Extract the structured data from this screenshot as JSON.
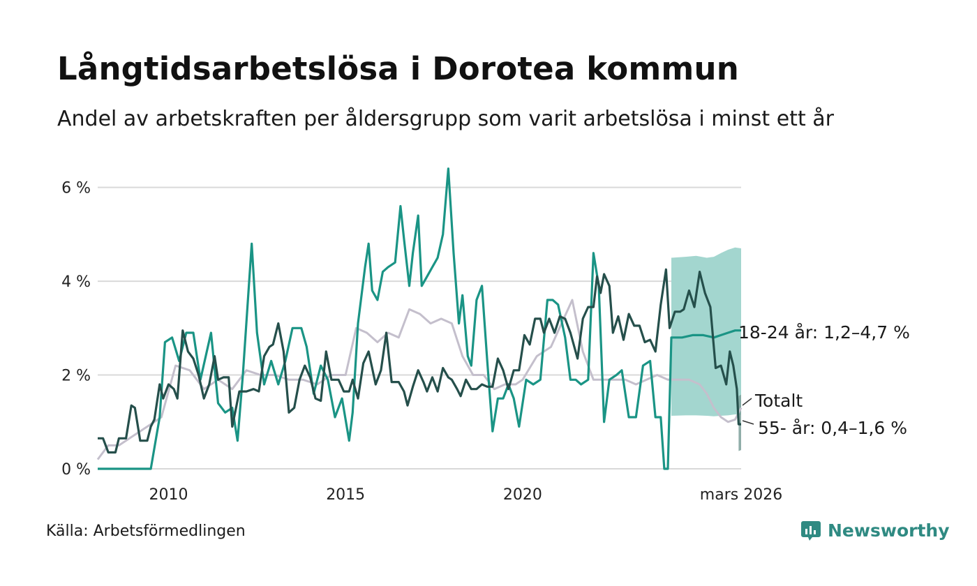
{
  "title": "Långtidsarbetslösa i Dorotea kommun",
  "subtitle": "Andel av arbetskraften per åldersgrupp som varit arbetslösa i minst ett år",
  "source": "Källa: Arbetsförmedlingen",
  "brand": {
    "name": "Newsworthy",
    "icon": "newsworthy-logo-icon",
    "color": "#2f8a82"
  },
  "chart_data": {
    "type": "line",
    "x_unit": "decimal year",
    "xlim": [
      2008.0,
      2026.17
    ],
    "ylim": [
      0,
      6.5
    ],
    "y_ticks": [
      0,
      2,
      4,
      6
    ],
    "y_tick_labels": [
      "0 %",
      "2 %",
      "4 %",
      "6 %"
    ],
    "x_ticks": [
      2010,
      2015,
      2020,
      2026.17
    ],
    "x_tick_labels": [
      "2010",
      "2015",
      "2020",
      "mars 2026"
    ],
    "grid": true,
    "series": [
      {
        "name": "Totalt",
        "label": "Totalt",
        "color": "#c4bfcc",
        "points": [
          [
            2008.0,
            0.2
          ],
          [
            2008.3,
            0.5
          ],
          [
            2008.6,
            0.5
          ],
          [
            2009.0,
            0.7
          ],
          [
            2009.4,
            0.9
          ],
          [
            2009.8,
            1.1
          ],
          [
            2010.2,
            2.2
          ],
          [
            2010.6,
            2.1
          ],
          [
            2011.0,
            1.7
          ],
          [
            2011.4,
            1.9
          ],
          [
            2011.8,
            1.7
          ],
          [
            2012.2,
            2.1
          ],
          [
            2012.6,
            2.0
          ],
          [
            2013.0,
            2.0
          ],
          [
            2013.4,
            1.9
          ],
          [
            2013.8,
            1.9
          ],
          [
            2014.2,
            1.8
          ],
          [
            2014.6,
            2.0
          ],
          [
            2015.0,
            2.0
          ],
          [
            2015.3,
            3.0
          ],
          [
            2015.6,
            2.9
          ],
          [
            2015.9,
            2.7
          ],
          [
            2016.2,
            2.9
          ],
          [
            2016.5,
            2.8
          ],
          [
            2016.8,
            3.4
          ],
          [
            2017.1,
            3.3
          ],
          [
            2017.4,
            3.1
          ],
          [
            2017.7,
            3.2
          ],
          [
            2018.0,
            3.1
          ],
          [
            2018.3,
            2.4
          ],
          [
            2018.6,
            2.0
          ],
          [
            2018.9,
            2.0
          ],
          [
            2019.2,
            1.7
          ],
          [
            2019.5,
            1.8
          ],
          [
            2019.8,
            1.8
          ],
          [
            2020.0,
            1.9
          ],
          [
            2020.4,
            2.4
          ],
          [
            2020.8,
            2.6
          ],
          [
            2021.1,
            3.1
          ],
          [
            2021.4,
            3.6
          ],
          [
            2021.7,
            2.5
          ],
          [
            2022.0,
            1.9
          ],
          [
            2022.3,
            1.9
          ],
          [
            2022.6,
            1.9
          ],
          [
            2022.9,
            1.9
          ],
          [
            2023.2,
            1.8
          ],
          [
            2023.5,
            1.9
          ],
          [
            2023.8,
            2.0
          ],
          [
            2024.1,
            1.9
          ],
          [
            2024.4,
            1.9
          ],
          [
            2024.7,
            1.9
          ],
          [
            2025.0,
            1.8
          ],
          [
            2025.2,
            1.6
          ],
          [
            2025.4,
            1.3
          ],
          [
            2025.6,
            1.1
          ],
          [
            2025.8,
            1.0
          ],
          [
            2026.0,
            1.05
          ],
          [
            2026.17,
            1.3
          ]
        ]
      },
      {
        "name": "18-24 år",
        "label": "18-24 år: 1,2–4,7 %",
        "range_low": 1.2,
        "range_high": 4.7,
        "color": "#1a9485",
        "band_color": "#a3d6cf",
        "points": [
          [
            2008.0,
            0.0
          ],
          [
            2009.5,
            0.0
          ],
          [
            2009.75,
            1.1
          ],
          [
            2009.9,
            2.7
          ],
          [
            2010.1,
            2.8
          ],
          [
            2010.3,
            2.3
          ],
          [
            2010.5,
            2.9
          ],
          [
            2010.7,
            2.9
          ],
          [
            2010.9,
            1.9
          ],
          [
            2011.2,
            2.9
          ],
          [
            2011.4,
            1.4
          ],
          [
            2011.6,
            1.2
          ],
          [
            2011.8,
            1.3
          ],
          [
            2011.95,
            0.6
          ],
          [
            2012.1,
            2.0
          ],
          [
            2012.35,
            4.8
          ],
          [
            2012.5,
            2.9
          ],
          [
            2012.7,
            1.8
          ],
          [
            2012.9,
            2.3
          ],
          [
            2013.1,
            1.8
          ],
          [
            2013.3,
            2.3
          ],
          [
            2013.5,
            3.0
          ],
          [
            2013.75,
            3.0
          ],
          [
            2013.9,
            2.6
          ],
          [
            2014.1,
            1.6
          ],
          [
            2014.3,
            2.2
          ],
          [
            2014.5,
            1.9
          ],
          [
            2014.7,
            1.1
          ],
          [
            2014.9,
            1.5
          ],
          [
            2015.1,
            0.6
          ],
          [
            2015.2,
            1.2
          ],
          [
            2015.35,
            3.1
          ],
          [
            2015.55,
            4.3
          ],
          [
            2015.65,
            4.8
          ],
          [
            2015.75,
            3.8
          ],
          [
            2015.9,
            3.6
          ],
          [
            2016.05,
            4.2
          ],
          [
            2016.2,
            4.3
          ],
          [
            2016.4,
            4.4
          ],
          [
            2016.55,
            5.6
          ],
          [
            2016.65,
            4.9
          ],
          [
            2016.8,
            3.9
          ],
          [
            2016.9,
            4.6
          ],
          [
            2017.05,
            5.4
          ],
          [
            2017.15,
            3.9
          ],
          [
            2017.3,
            4.1
          ],
          [
            2017.45,
            4.3
          ],
          [
            2017.6,
            4.5
          ],
          [
            2017.75,
            5.0
          ],
          [
            2017.9,
            6.4
          ],
          [
            2018.05,
            4.6
          ],
          [
            2018.2,
            3.1
          ],
          [
            2018.3,
            3.7
          ],
          [
            2018.45,
            2.4
          ],
          [
            2018.55,
            2.2
          ],
          [
            2018.7,
            3.6
          ],
          [
            2018.85,
            3.9
          ],
          [
            2019.0,
            2.3
          ],
          [
            2019.15,
            0.8
          ],
          [
            2019.3,
            1.5
          ],
          [
            2019.45,
            1.5
          ],
          [
            2019.6,
            1.8
          ],
          [
            2019.75,
            1.5
          ],
          [
            2019.9,
            0.9
          ],
          [
            2020.1,
            1.9
          ],
          [
            2020.3,
            1.8
          ],
          [
            2020.5,
            1.9
          ],
          [
            2020.7,
            3.6
          ],
          [
            2020.85,
            3.6
          ],
          [
            2021.0,
            3.5
          ],
          [
            2021.2,
            2.8
          ],
          [
            2021.35,
            1.9
          ],
          [
            2021.5,
            1.9
          ],
          [
            2021.65,
            1.8
          ],
          [
            2021.85,
            1.9
          ],
          [
            2022.0,
            4.6
          ],
          [
            2022.15,
            3.9
          ],
          [
            2022.3,
            1.0
          ],
          [
            2022.45,
            1.9
          ],
          [
            2022.65,
            2.0
          ],
          [
            2022.8,
            2.1
          ],
          [
            2023.0,
            1.1
          ],
          [
            2023.2,
            1.1
          ],
          [
            2023.4,
            2.2
          ],
          [
            2023.6,
            2.3
          ],
          [
            2023.75,
            1.1
          ],
          [
            2023.9,
            1.1
          ],
          [
            2024.0,
            0.0
          ],
          [
            2024.1,
            0.0
          ],
          [
            2024.2,
            2.8
          ],
          [
            2024.5,
            2.8
          ],
          [
            2024.8,
            2.85
          ],
          [
            2025.1,
            2.85
          ],
          [
            2025.4,
            2.8
          ],
          [
            2025.6,
            2.85
          ],
          [
            2025.8,
            2.9
          ],
          [
            2026.0,
            2.95
          ],
          [
            2026.17,
            2.95
          ]
        ],
        "band": [
          [
            2024.2,
            1.13,
            4.5
          ],
          [
            2024.6,
            1.14,
            4.52
          ],
          [
            2024.9,
            1.14,
            4.54
          ],
          [
            2025.2,
            1.13,
            4.5
          ],
          [
            2025.4,
            1.12,
            4.52
          ],
          [
            2025.6,
            1.13,
            4.6
          ],
          [
            2025.8,
            1.14,
            4.67
          ],
          [
            2026.0,
            1.16,
            4.72
          ],
          [
            2026.17,
            1.15,
            4.7
          ]
        ]
      },
      {
        "name": "55- år",
        "label": "55- år: 0,4–1,6 %",
        "range_low": 0.4,
        "range_high": 1.6,
        "color": "#254f4b",
        "band_color": "#7da09a",
        "points": [
          [
            2008.0,
            0.65
          ],
          [
            2008.15,
            0.65
          ],
          [
            2008.3,
            0.35
          ],
          [
            2008.5,
            0.35
          ],
          [
            2008.6,
            0.65
          ],
          [
            2008.8,
            0.65
          ],
          [
            2008.95,
            1.35
          ],
          [
            2009.05,
            1.3
          ],
          [
            2009.2,
            0.6
          ],
          [
            2009.4,
            0.6
          ],
          [
            2009.5,
            0.9
          ],
          [
            2009.6,
            1.05
          ],
          [
            2009.75,
            1.8
          ],
          [
            2009.85,
            1.5
          ],
          [
            2010.0,
            1.8
          ],
          [
            2010.15,
            1.7
          ],
          [
            2010.25,
            1.5
          ],
          [
            2010.4,
            2.95
          ],
          [
            2010.55,
            2.5
          ],
          [
            2010.7,
            2.35
          ],
          [
            2010.85,
            2.0
          ],
          [
            2011.0,
            1.5
          ],
          [
            2011.15,
            1.8
          ],
          [
            2011.3,
            2.4
          ],
          [
            2011.4,
            1.9
          ],
          [
            2011.55,
            1.95
          ],
          [
            2011.7,
            1.95
          ],
          [
            2011.8,
            0.9
          ],
          [
            2012.0,
            1.65
          ],
          [
            2012.2,
            1.65
          ],
          [
            2012.4,
            1.7
          ],
          [
            2012.55,
            1.65
          ],
          [
            2012.7,
            2.4
          ],
          [
            2012.85,
            2.6
          ],
          [
            2012.95,
            2.65
          ],
          [
            2013.1,
            3.1
          ],
          [
            2013.25,
            2.5
          ],
          [
            2013.4,
            1.2
          ],
          [
            2013.55,
            1.3
          ],
          [
            2013.7,
            1.9
          ],
          [
            2013.85,
            2.2
          ],
          [
            2014.0,
            1.95
          ],
          [
            2014.15,
            1.5
          ],
          [
            2014.3,
            1.45
          ],
          [
            2014.45,
            2.5
          ],
          [
            2014.6,
            1.9
          ],
          [
            2014.8,
            1.9
          ],
          [
            2014.95,
            1.65
          ],
          [
            2015.1,
            1.65
          ],
          [
            2015.2,
            1.9
          ],
          [
            2015.35,
            1.5
          ],
          [
            2015.5,
            2.25
          ],
          [
            2015.65,
            2.5
          ],
          [
            2015.85,
            1.8
          ],
          [
            2016.0,
            2.1
          ],
          [
            2016.15,
            2.9
          ],
          [
            2016.3,
            1.85
          ],
          [
            2016.5,
            1.85
          ],
          [
            2016.65,
            1.65
          ],
          [
            2016.75,
            1.35
          ],
          [
            2016.9,
            1.75
          ],
          [
            2017.05,
            2.1
          ],
          [
            2017.2,
            1.85
          ],
          [
            2017.3,
            1.65
          ],
          [
            2017.45,
            1.95
          ],
          [
            2017.6,
            1.65
          ],
          [
            2017.75,
            2.15
          ],
          [
            2017.9,
            1.95
          ],
          [
            2018.0,
            1.9
          ],
          [
            2018.15,
            1.7
          ],
          [
            2018.25,
            1.55
          ],
          [
            2018.4,
            1.9
          ],
          [
            2018.55,
            1.7
          ],
          [
            2018.7,
            1.7
          ],
          [
            2018.85,
            1.8
          ],
          [
            2019.0,
            1.75
          ],
          [
            2019.15,
            1.75
          ],
          [
            2019.3,
            2.35
          ],
          [
            2019.45,
            2.1
          ],
          [
            2019.6,
            1.7
          ],
          [
            2019.75,
            2.1
          ],
          [
            2019.9,
            2.1
          ],
          [
            2020.05,
            2.85
          ],
          [
            2020.2,
            2.65
          ],
          [
            2020.35,
            3.2
          ],
          [
            2020.5,
            3.2
          ],
          [
            2020.6,
            2.9
          ],
          [
            2020.75,
            3.2
          ],
          [
            2020.9,
            2.9
          ],
          [
            2021.05,
            3.25
          ],
          [
            2021.2,
            3.2
          ],
          [
            2021.35,
            2.9
          ],
          [
            2021.55,
            2.35
          ],
          [
            2021.7,
            3.2
          ],
          [
            2021.85,
            3.45
          ],
          [
            2022.0,
            3.45
          ],
          [
            2022.1,
            4.1
          ],
          [
            2022.2,
            3.75
          ],
          [
            2022.3,
            4.15
          ],
          [
            2022.45,
            3.9
          ],
          [
            2022.55,
            2.9
          ],
          [
            2022.7,
            3.25
          ],
          [
            2022.85,
            2.75
          ],
          [
            2023.0,
            3.3
          ],
          [
            2023.15,
            3.05
          ],
          [
            2023.3,
            3.05
          ],
          [
            2023.45,
            2.7
          ],
          [
            2023.6,
            2.75
          ],
          [
            2023.75,
            2.5
          ],
          [
            2023.9,
            3.5
          ],
          [
            2024.05,
            4.25
          ],
          [
            2024.15,
            3.0
          ],
          [
            2024.3,
            3.35
          ],
          [
            2024.45,
            3.35
          ],
          [
            2024.55,
            3.4
          ],
          [
            2024.7,
            3.8
          ],
          [
            2024.85,
            3.45
          ],
          [
            2025.0,
            4.2
          ],
          [
            2025.15,
            3.75
          ],
          [
            2025.3,
            3.45
          ],
          [
            2025.45,
            2.15
          ],
          [
            2025.6,
            2.2
          ],
          [
            2025.75,
            1.8
          ],
          [
            2025.85,
            2.5
          ],
          [
            2025.95,
            2.2
          ],
          [
            2026.05,
            1.7
          ],
          [
            2026.1,
            0.95
          ],
          [
            2026.17,
            0.95
          ]
        ],
        "band": [
          [
            2026.1,
            0.38,
            1.55
          ],
          [
            2026.17,
            0.4,
            1.58
          ]
        ]
      }
    ]
  }
}
